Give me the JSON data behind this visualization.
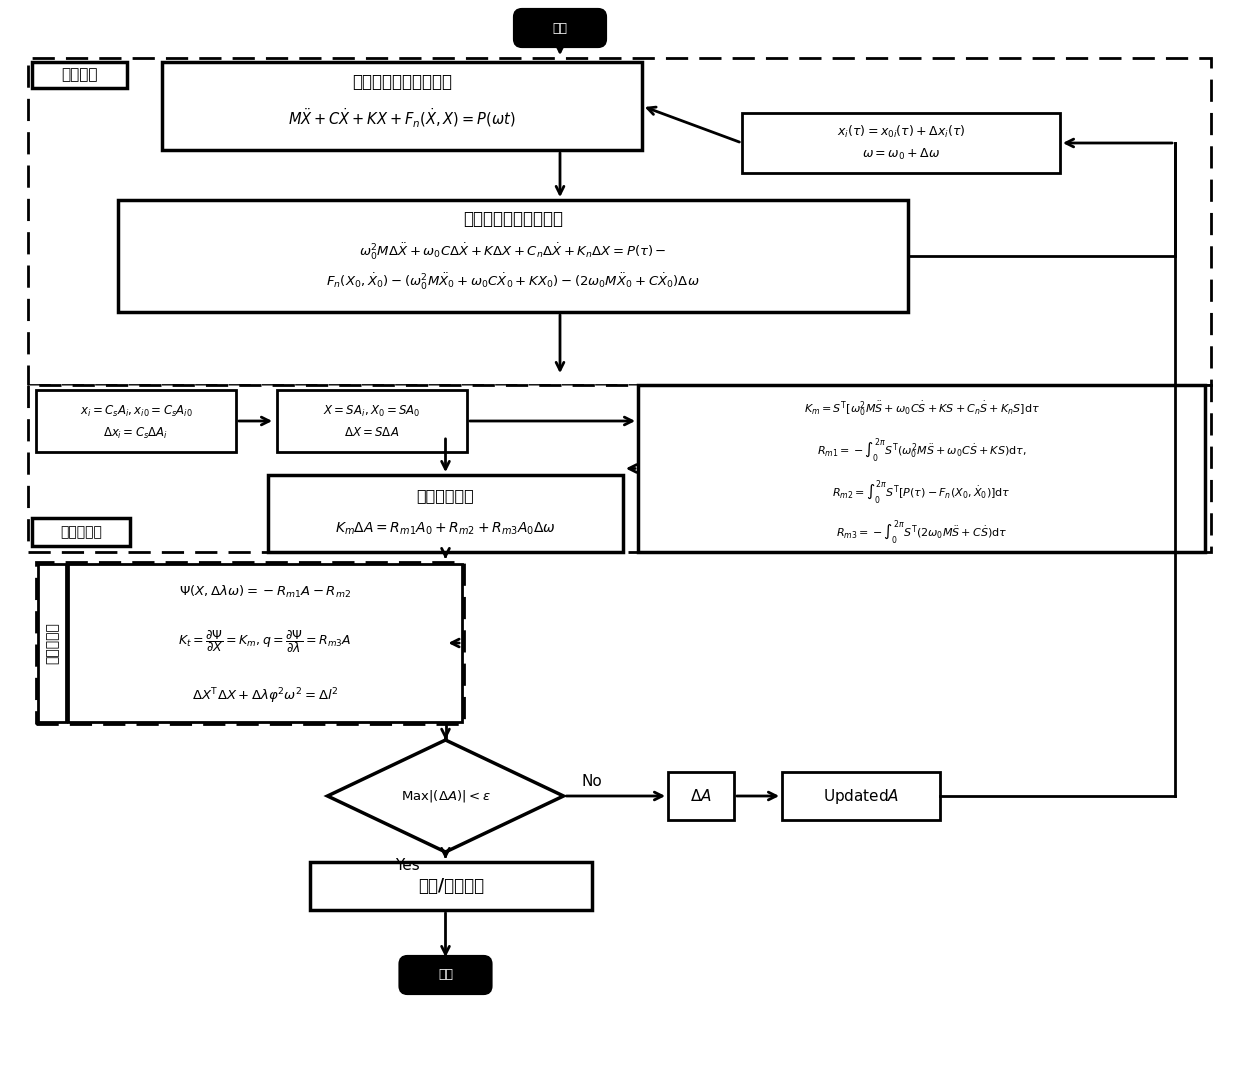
{
  "start_label": "开始",
  "end_label": "结束",
  "box1_title": "非线性系统动力学方程",
  "box1_eq": "$M\\ddot{X}+C\\dot{X}+KX+F_n(\\dot{X},X)=P(\\omega t)$",
  "box2_title": "非线性系统的增量方程",
  "box2_eq1": "$\\omega_0^2M\\Delta\\ddot{X}+\\omega_0C\\Delta\\dot{X}+K\\Delta X+C_n\\Delta\\dot{X}+K_n\\Delta X=P(\\tau)-$",
  "box2_eq2": "$F_n(X_0,\\dot{X}_0)-(\\omega_0^2M\\ddot{X}_0+\\omega_0C\\dot{X}_0+KX_0)-(2\\omega_0M\\ddot{X}_0+C\\dot{X}_0)\\Delta\\omega$",
  "box3_title": "增量迭代方程",
  "box3_eq": "$K_m\\Delta A=R_{m1}A_0+R_{m2}+R_{m3}A_0\\Delta\\omega$",
  "box4_title": "稳态/非稳态解",
  "diamond_text": "$\\mathrm{Max}|(\\Delta A)|<\\varepsilon$",
  "no_label": "No",
  "yes_label": "Yes",
  "lb1_eq1": "$x_i=C_sA_i,x_{i0}=C_sA_{i0}$",
  "lb1_eq2": "$\\Delta x_i=C_s\\Delta A_i$",
  "lb2_eq1": "$X=SA_i,X_0=SA_0$",
  "lb2_eq2": "$\\Delta X=S\\Delta A$",
  "rb_eq1": "$K_m=S^\\mathrm{T}[\\omega_0^2M\\ddot{S}+\\omega_0C\\dot{S}+KS+C_n\\dot{S}+K_nS]\\mathrm{d}\\tau$",
  "rb_eq2": "$R_{m1}=-\\int_0^{2\\pi}S^\\mathrm{T}(\\omega_0^2M\\ddot{S}+\\omega_0C\\dot{S}+KS)\\mathrm{d}\\tau,$",
  "rb_eq3": "$R_{m2}=\\int_0^{2\\pi}S^\\mathrm{T}[P(\\tau)-F_n(X_0,\\dot{X}_0)]\\mathrm{d}\\tau$",
  "rb_eq4": "$R_{m3}=-\\int_0^{2\\pi}S^\\mathrm{T}(2\\omega_0M\\ddot{S}+C\\dot{S})\\mathrm{d}\\tau$",
  "arc_vert_label": "弧长延拓法",
  "arc_eq1": "$\\Psi(X,\\Delta\\lambda\\omega)=-R_{m1}A-R_{m2}$",
  "arc_eq2": "$K_t=\\dfrac{\\partial\\Psi}{\\partial X}=K_m,q=\\dfrac{\\partial\\Psi}{\\partial\\lambda}=R_{m3}A$",
  "arc_eq3": "$\\Delta X^\\mathrm{T}\\Delta X+\\Delta\\lambda\\varphi^2\\omega^2=\\Delta l^2$",
  "da_label": "$\\Delta A$",
  "ua_label": "$\\mathrm{Updated}A$",
  "fb_eq1": "$x_i(\\tau)=x_{0i}(\\tau)+\\Delta x_i(\\tau)$",
  "fb_eq2": "$\\omega=\\omega_0+\\Delta\\omega$",
  "label_zl": "增量过程",
  "label_gj": "伽辽金过程",
  "lw_outer": 2.0,
  "lw_inner": 2.5,
  "lw_arrow": 2.0
}
